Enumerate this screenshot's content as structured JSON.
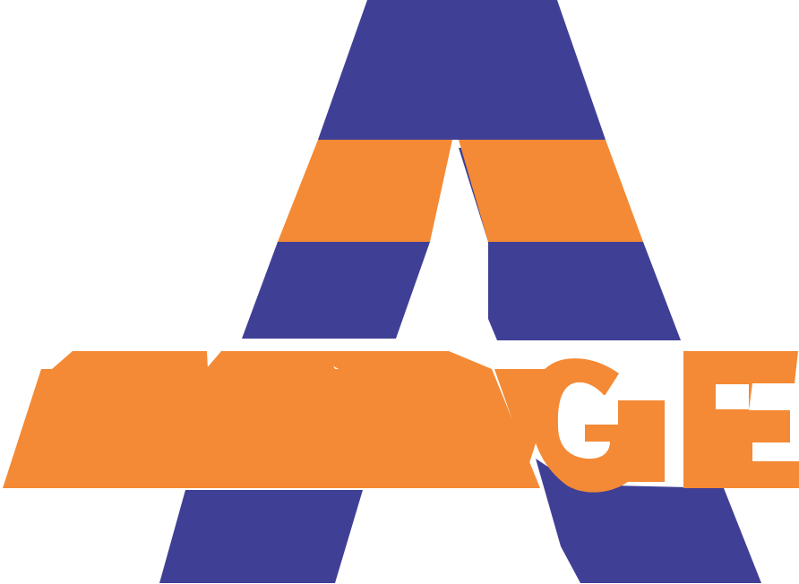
{
  "logo": {
    "big_letter": "A",
    "text": "GE",
    "colors": {
      "navy": "#3F4095",
      "orange": "#F48A35",
      "white": "#FFFFFF"
    }
  }
}
